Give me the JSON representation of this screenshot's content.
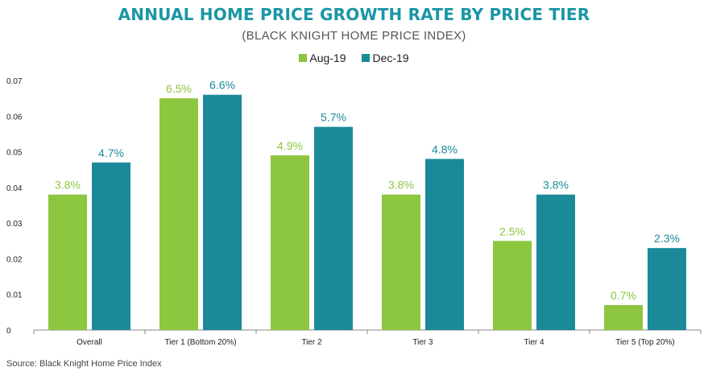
{
  "chart_data": {
    "type": "bar",
    "title": "ANNUAL HOME PRICE GROWTH RATE BY PRICE TIER",
    "subtitle": "(BLACK KNIGHT HOME PRICE INDEX)",
    "categories": [
      "Overall",
      "Tier 1 (Bottom 20%)",
      "Tier 2",
      "Tier 3",
      "Tier 4",
      "Tier 5 (Top 20%)"
    ],
    "series": [
      {
        "name": "Aug-19",
        "color": "#8dc63f",
        "values": [
          0.038,
          0.065,
          0.049,
          0.038,
          0.025,
          0.007
        ],
        "labels": [
          "3.8%",
          "6.5%",
          "4.9%",
          "3.8%",
          "2.5%",
          "0.7%"
        ]
      },
      {
        "name": "Dec-19",
        "color": "#1a8a99",
        "values": [
          0.047,
          0.066,
          0.057,
          0.048,
          0.038,
          0.023
        ],
        "labels": [
          "4.7%",
          "6.6%",
          "5.7%",
          "4.8%",
          "3.8%",
          "2.3%"
        ]
      }
    ],
    "yticks": [
      "0",
      "0.01",
      "0.02",
      "0.03",
      "0.04",
      "0.05",
      "0.06",
      "0.07"
    ],
    "ylim": [
      0,
      0.07
    ],
    "legend_position": "top-center",
    "grid": false,
    "source": "Source: Black Knight Home Price Index"
  }
}
